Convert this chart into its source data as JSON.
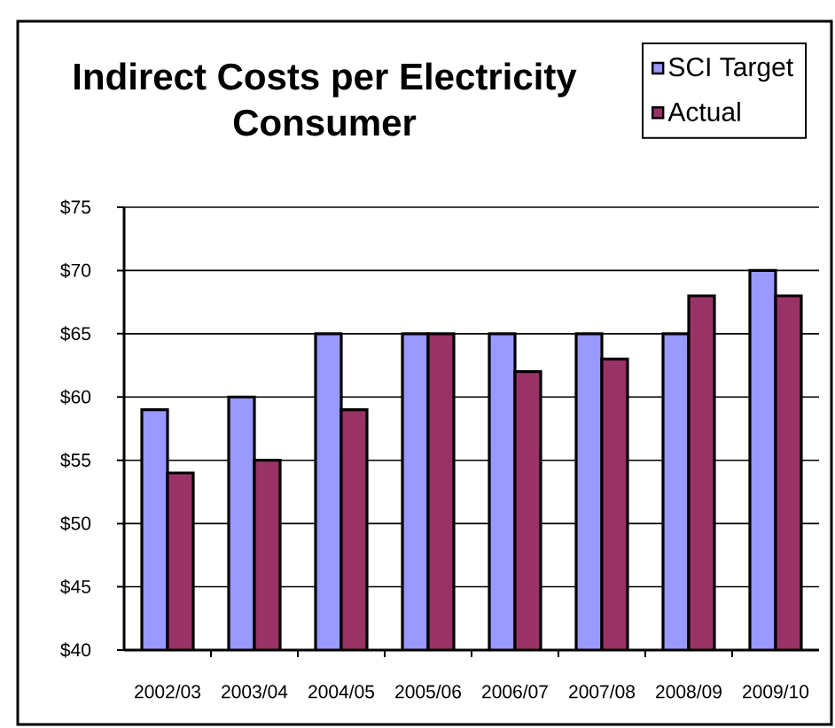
{
  "chart_data": {
    "type": "bar",
    "title": "Indirect Costs per Electricity Consumer",
    "categories": [
      "2002/03",
      "2003/04",
      "2004/05",
      "2005/06",
      "2006/07",
      "2007/08",
      "2008/09",
      "2009/10"
    ],
    "series": [
      {
        "name": "SCI Target",
        "color": "#9999ff",
        "values": [
          59,
          60,
          65,
          65,
          65,
          65,
          65,
          70
        ]
      },
      {
        "name": "Actual",
        "color": "#993366",
        "values": [
          54,
          55,
          59,
          65,
          62,
          63,
          68,
          68
        ]
      }
    ],
    "ylim": [
      40,
      75
    ],
    "yticks": [
      {
        "value": 40,
        "label": "$40"
      },
      {
        "value": 45,
        "label": "$45"
      },
      {
        "value": 50,
        "label": "$50"
      },
      {
        "value": 55,
        "label": "$55"
      },
      {
        "value": 60,
        "label": "$60"
      },
      {
        "value": 65,
        "label": "$65"
      },
      {
        "value": 70,
        "label": "$70"
      },
      {
        "value": 75,
        "label": "$75"
      }
    ],
    "grid": "y",
    "legend": "top right"
  }
}
